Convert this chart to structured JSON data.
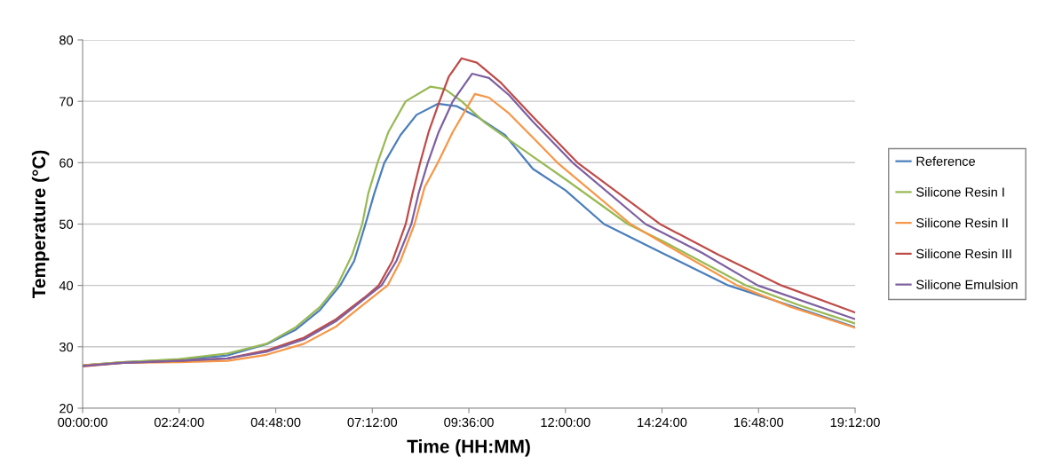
{
  "chart_data": {
    "type": "line",
    "xlabel": "Time (HH:MM)",
    "ylabel": "Temperature (°C)",
    "xlim": [
      0,
      19.2
    ],
    "ylim": [
      20,
      80
    ],
    "xticks": [
      {
        "value": 0,
        "label": "00:00:00"
      },
      {
        "value": 2.4,
        "label": "02:24:00"
      },
      {
        "value": 4.8,
        "label": "04:48:00"
      },
      {
        "value": 7.2,
        "label": "07:12:00"
      },
      {
        "value": 9.6,
        "label": "09:36:00"
      },
      {
        "value": 12,
        "label": "12:00:00"
      },
      {
        "value": 14.4,
        "label": "14:24:00"
      },
      {
        "value": 16.8,
        "label": "16:48:00"
      },
      {
        "value": 19.2,
        "label": "19:12:00"
      }
    ],
    "yticks": [
      20,
      30,
      40,
      50,
      60,
      70,
      80
    ],
    "grid": "y",
    "legend": "right",
    "marker": "none",
    "line_style": "solid",
    "series": [
      {
        "name": "Reference",
        "color": "#4a7ebb",
        "x": [
          0,
          1,
          2.4,
          3.6,
          4.6,
          5.3,
          5.9,
          6.4,
          6.75,
          7.03,
          7.25,
          7.5,
          7.9,
          8.3,
          8.83,
          9.3,
          9.8,
          10.5,
          11.19,
          12,
          12.96,
          14.4,
          16.05,
          17.6,
          19.2
        ],
        "values": [
          27.0,
          27.5,
          27.9,
          28.6,
          30.5,
          32.8,
          36.0,
          40.0,
          44,
          50,
          55,
          60,
          64.5,
          67.8,
          69.6,
          69.2,
          67.5,
          64.5,
          59.0,
          55.5,
          50,
          45.3,
          40,
          36.7,
          33.2
        ]
      },
      {
        "name": "Silicone Resin I",
        "color": "#98b954",
        "x": [
          0,
          1,
          2.4,
          3.6,
          4.57,
          5.3,
          5.9,
          6.33,
          6.7,
          6.95,
          7.1,
          7.33,
          7.6,
          8.03,
          8.65,
          9.0,
          9.42,
          10,
          11.19,
          12,
          13.55,
          14.4,
          16.49,
          17.8,
          19.2
        ],
        "values": [
          27.0,
          27.5,
          28.0,
          28.9,
          30.5,
          33.2,
          36.5,
          40,
          45,
          50,
          55,
          60,
          65,
          70,
          72.4,
          72.0,
          70,
          66.5,
          61.0,
          57.3,
          50,
          47.3,
          40,
          36.8,
          33.8
        ]
      },
      {
        "name": "Silicone Resin II",
        "color": "#f79646",
        "x": [
          0,
          1,
          2.4,
          3.6,
          4.57,
          5.5,
          6.3,
          7.0,
          7.58,
          7.9,
          8.25,
          8.5,
          8.83,
          9.2,
          9.75,
          10.1,
          10.6,
          11.19,
          11.8,
          13.62,
          14.4,
          16.27,
          17.6,
          19.2
        ],
        "values": [
          27.0,
          27.4,
          27.5,
          27.7,
          28.7,
          30.5,
          33.3,
          37,
          40,
          44,
          50,
          56,
          60,
          65,
          71.2,
          70.6,
          68,
          64.1,
          60,
          50,
          47,
          40,
          36.5,
          33.1
        ]
      },
      {
        "name": "Silicone Resin III",
        "color": "#be4b48",
        "x": [
          0,
          1,
          2.4,
          3.6,
          4.57,
          5.5,
          6.3,
          7.0,
          7.36,
          7.7,
          8.03,
          8.2,
          8.39,
          8.6,
          8.87,
          9.1,
          9.42,
          9.8,
          10.4,
          11.19,
          12.3,
          14.35,
          15.8,
          17.37,
          19.2
        ],
        "values": [
          26.8,
          27.4,
          27.7,
          28.1,
          29.4,
          31.5,
          34.5,
          38,
          40,
          44,
          50,
          55,
          60,
          65,
          70,
          74,
          77.0,
          76.3,
          73,
          67.5,
          60,
          50,
          45,
          40,
          35.6
        ]
      },
      {
        "name": "Silicone Emulsion",
        "color": "#7d60a0",
        "x": [
          0,
          1,
          2.4,
          3.6,
          4.57,
          5.5,
          6.3,
          7.0,
          7.43,
          7.8,
          8.17,
          8.35,
          8.58,
          8.85,
          9.2,
          9.68,
          10.1,
          10.6,
          11.19,
          12.18,
          13.99,
          15.4,
          16.78,
          19.2
        ],
        "values": [
          26.9,
          27.4,
          27.7,
          28.1,
          29.2,
          31.2,
          34.2,
          37.8,
          40,
          44,
          50,
          55,
          60,
          65,
          70,
          74.5,
          73.8,
          71,
          66.7,
          60,
          50,
          45.3,
          40,
          34.5
        ]
      }
    ]
  }
}
